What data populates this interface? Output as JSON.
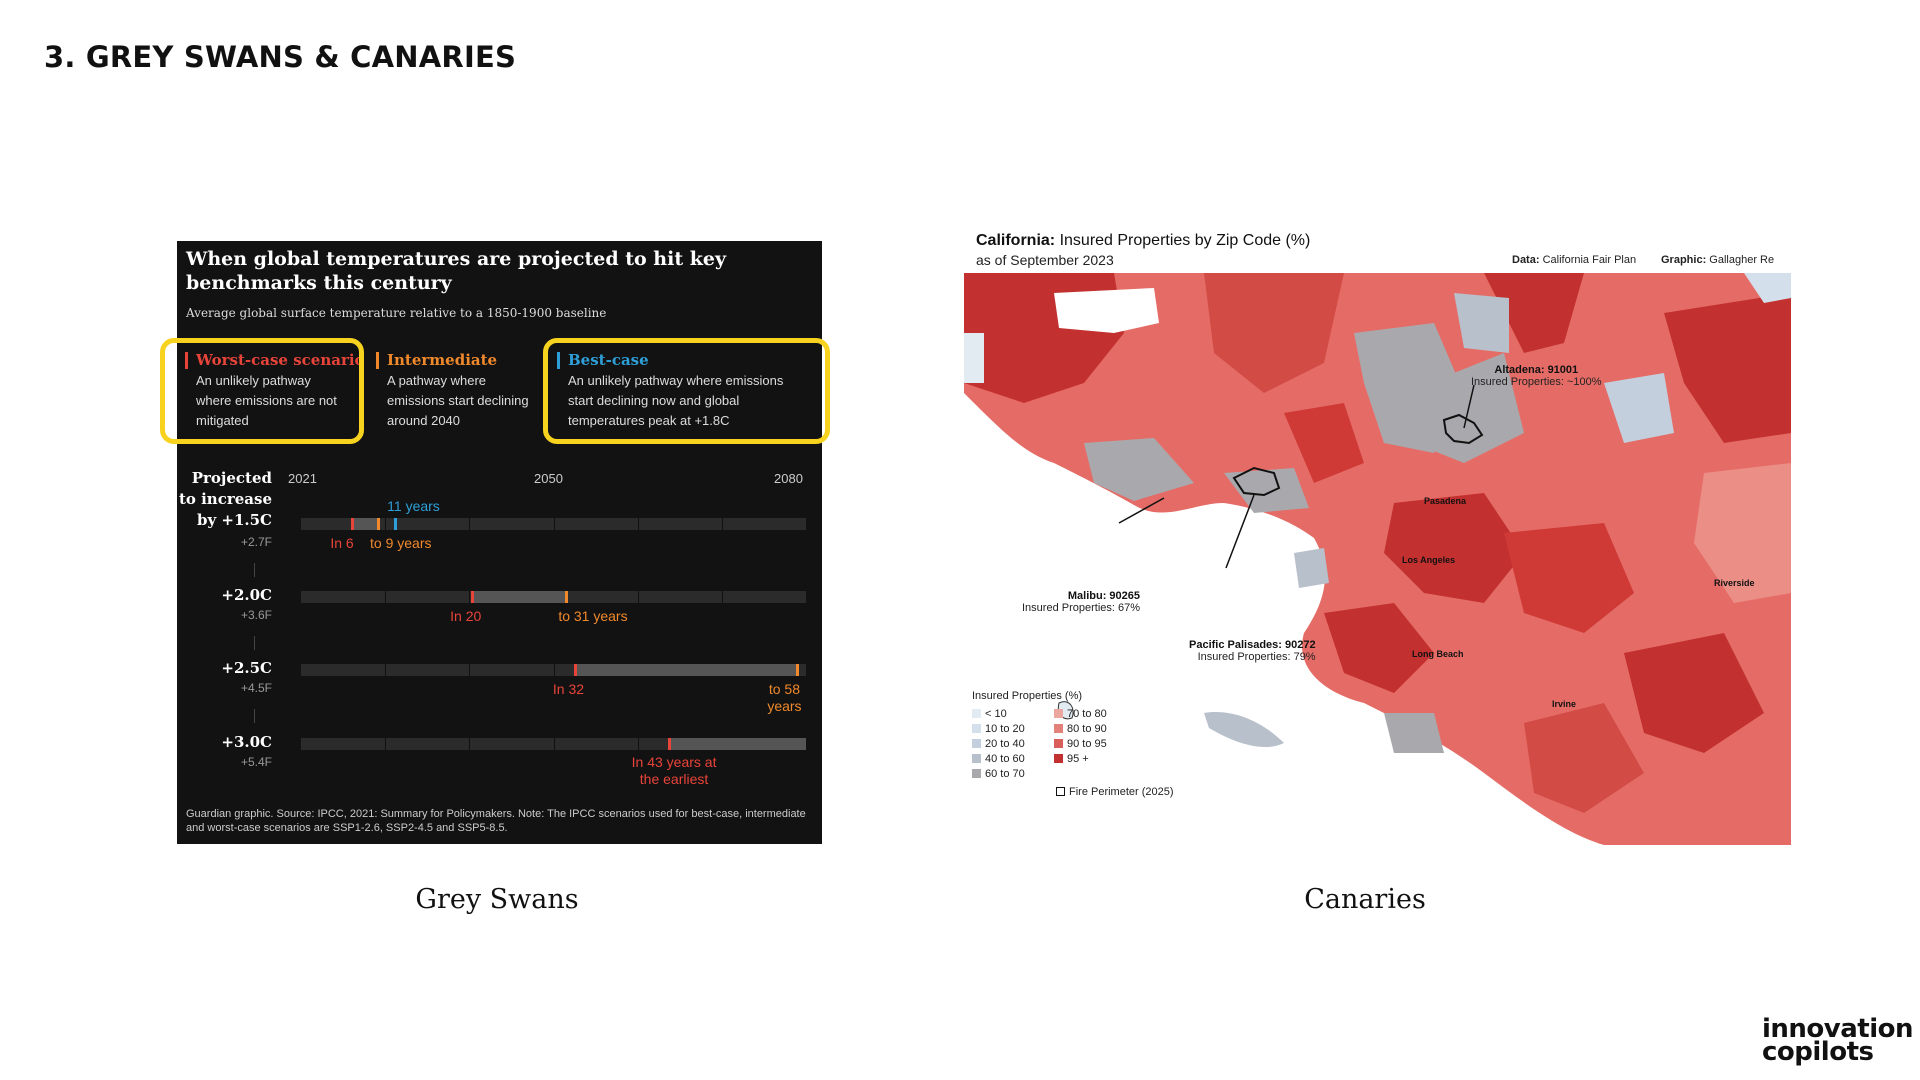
{
  "slide": {
    "title": "3. GREY SWANS & CANARIES",
    "captions": {
      "left": "Grey Swans",
      "right": "Canaries"
    },
    "logo": {
      "line1": "innovation",
      "line2": "copilots"
    }
  },
  "guardian": {
    "title": "When global temperatures are projected to hit key benchmarks  this century",
    "subtitle": "Average global surface temperature relative to a 1850-1900 baseline",
    "legend": [
      {
        "name": "Worst-case scenario",
        "color": "#e8443a",
        "desc": "An unlikely pathway where emissions are not mitigated"
      },
      {
        "name": "Intermediate",
        "color": "#f0892b",
        "desc": "A pathway where emissions start declining around 2040"
      },
      {
        "name": "Best-case",
        "color": "#2e9fd8",
        "desc": "An unlikely pathway where emissions start declining now and global temperatures peak at +1.8C"
      }
    ],
    "years": [
      "2021",
      "2050",
      "2080"
    ],
    "year_range": [
      2021,
      2080
    ],
    "row_header": "Projected to increase by",
    "rows": [
      {
        "label": "+1.5C",
        "f": "+2.7F",
        "worst": 6,
        "intermediate": 9,
        "best": 11,
        "labels": {
          "worst": "In 6",
          "intermediate": "to 9 years",
          "best": "11 years"
        }
      },
      {
        "label": "+2.0C",
        "f": "+3.6F",
        "worst": 20,
        "intermediate": 31,
        "labels": {
          "worst": "In 20",
          "intermediate": "to 31 years"
        }
      },
      {
        "label": "+2.5C",
        "f": "+4.5F",
        "worst": 32,
        "intermediate": 58,
        "labels": {
          "worst": "In 32",
          "intermediate": "to 58 years"
        }
      },
      {
        "label": "+3.0C",
        "f": "+5.4F",
        "worst": 43,
        "labels": {
          "worst": "In 43 years at the earliest"
        }
      }
    ],
    "row1_prefix": "Projected to increase",
    "row1_by": "by +1.5C",
    "footer": "Guardian graphic. Source: IPCC, 2021: Summary for Policymakers. Note: The IPCC scenarios used for best-case, intermediate and worst-case scenarios are SSP1-2.6, SSP2-4.5 and SSP5-8.5."
  },
  "map": {
    "title_bold": "California:",
    "title_rest": " Insured Properties by Zip Code (%)",
    "as_of": "as of September 2023",
    "credit_data_label": "Data:",
    "credit_data": " California Fair Plan",
    "credit_graphic_label": "Graphic:",
    "credit_graphic": " Gallagher Re",
    "annotations": [
      {
        "name": "Altadena: 91001",
        "value": "Insured Properties: ~100%"
      },
      {
        "name": "Malibu: 90265",
        "value": "Insured Properties: 67%"
      },
      {
        "name": "Pacific Palisades: 90272",
        "value": "Insured Properties: 79%"
      }
    ],
    "cities": [
      "Pasadena",
      "Los Angeles",
      "Riverside",
      "Long Beach",
      "Irvine"
    ],
    "legend_title": "Insured Properties (%)",
    "legend_left": [
      {
        "label": "< 10",
        "color": "#e3ebf2"
      },
      {
        "label": "10 to 20",
        "color": "#d3dfea"
      },
      {
        "label": "20 to 40",
        "color": "#c3cfdc"
      },
      {
        "label": "40 to 60",
        "color": "#b7c0cb"
      },
      {
        "label": "60 to 70",
        "color": "#a9a9ad"
      }
    ],
    "legend_right": [
      {
        "label": "70 to 80",
        "color": "#eba69f"
      },
      {
        "label": "80 to 90",
        "color": "#e2817a"
      },
      {
        "label": "90 to 95",
        "color": "#d95f5a"
      },
      {
        "label": "95 +",
        "color": "#c2312f"
      }
    ],
    "fire_label": "Fire Perimeter (2025)"
  }
}
